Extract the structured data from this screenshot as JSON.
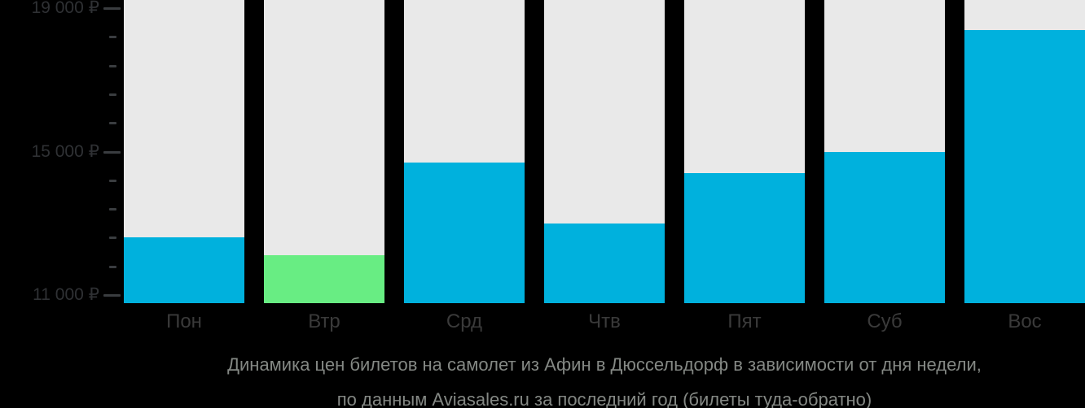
{
  "chart_data": {
    "type": "bar",
    "title": "Динамика цен билетов на самолет из Афин в Дюссельдорф в зависимости от дня недели, по данным Aviasales.ru за последний год (билеты туда-обратно)",
    "categories": [
      "Пон",
      "Втр",
      "Срд",
      "Чтв",
      "Пят",
      "Суб",
      "Вос"
    ],
    "values": [
      12600,
      12100,
      14700,
      13000,
      14400,
      15000,
      18400
    ],
    "highlight_index": 1,
    "xlabel": "",
    "ylabel": "",
    "ylim": [
      10773,
      19227
    ],
    "grid": false,
    "legend": "none",
    "yticks_major": [
      {
        "value": 19000,
        "label": "19 000 ₽"
      },
      {
        "value": 15000,
        "label": "15 000 ₽"
      },
      {
        "value": 11000,
        "label": "11 000 ₽"
      }
    ],
    "yticks_minor": [
      18200,
      17400,
      16600,
      15800,
      14200,
      13400,
      12600,
      11800
    ],
    "colors": {
      "bar": "#00b1dd",
      "highlight_bar": "#68ed83",
      "column_background": "#e9e9e9",
      "page_background": "#000000",
      "axis_label_text": "#2f3134",
      "day_label_text": "#3a3a3a",
      "caption_text": "#848884",
      "tick": "#3a3d40"
    }
  },
  "caption": {
    "line1": "Динамика цен билетов на самолет из Афин в Дюссельдорф в зависимости от дня недели,",
    "line2": "по данным Aviasales.ru за последний год (билеты туда-обратно)"
  }
}
